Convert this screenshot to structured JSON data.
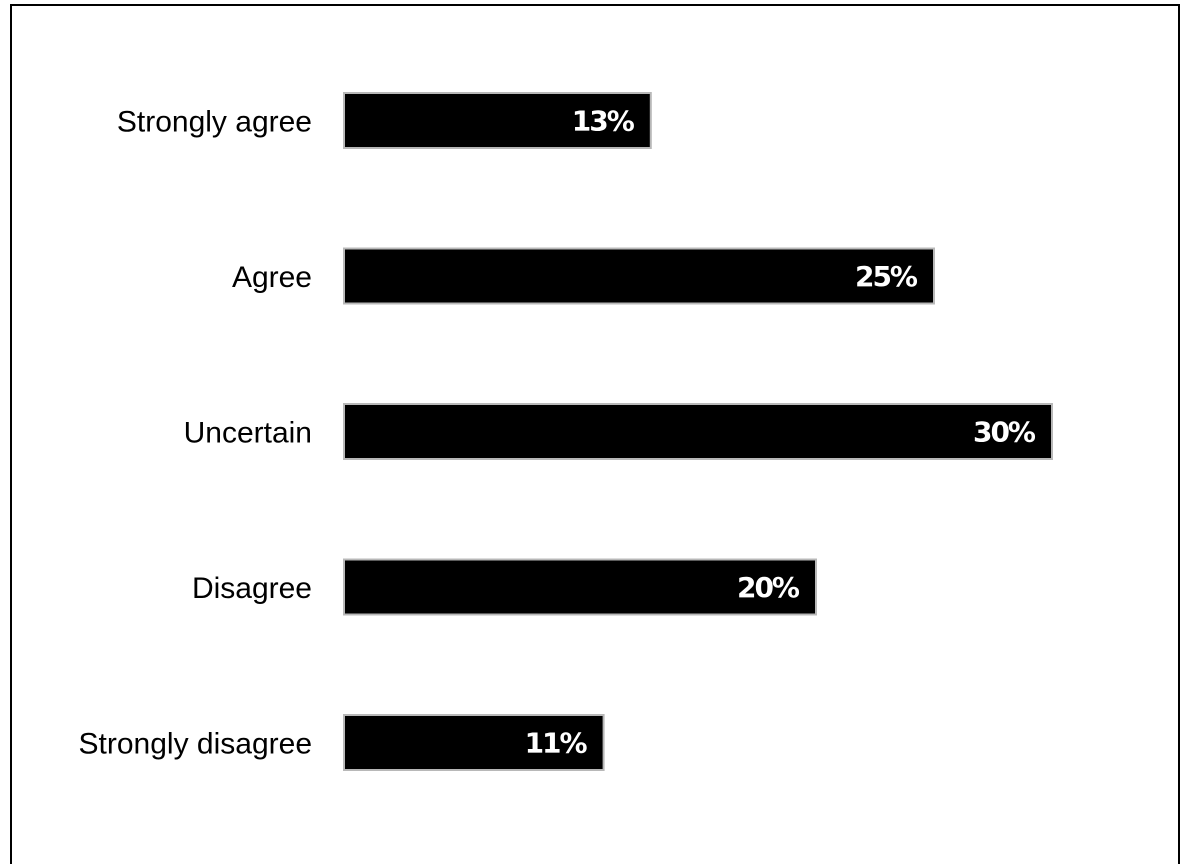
{
  "chart_data": {
    "type": "bar",
    "orientation": "horizontal",
    "categories": [
      "Strongly agree",
      "Agree",
      "Uncertain",
      "Disagree",
      "Strongly disagree"
    ],
    "values": [
      13,
      25,
      30,
      20,
      11
    ],
    "value_labels": [
      "13%",
      "25%",
      "30%",
      "20%",
      "11%"
    ],
    "unit": "%",
    "title": "",
    "xlabel": "",
    "ylabel": "",
    "grid": false,
    "legend": "none",
    "bar_color": "#000000",
    "label_color": "#ffffff"
  }
}
